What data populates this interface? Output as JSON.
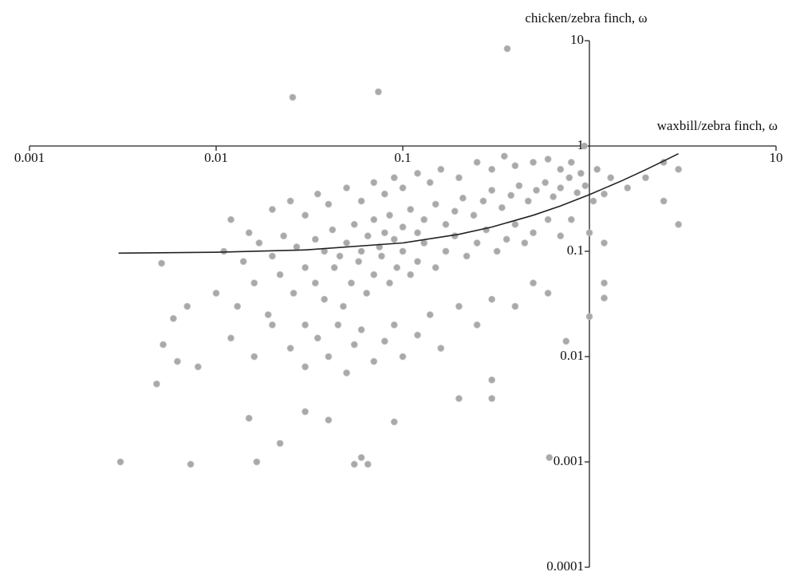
{
  "chart_data": {
    "type": "scatter",
    "x_label": "waxbill/zebra finch, ω",
    "y_label": "chicken/zebra finch, ω",
    "xscale": "log",
    "yscale": "log",
    "xlim": [
      0.001,
      10
    ],
    "ylim": [
      0.0001,
      10
    ],
    "xticks": [
      0.001,
      0.01,
      0.1,
      10
    ],
    "yticks": [
      0.0001,
      0.001,
      0.01,
      0.1,
      1,
      10
    ],
    "axes_cross": [
      1,
      1
    ],
    "points": {
      "color": "#a9a9a9",
      "x": [
        0.00307,
        0.0073,
        0.0165,
        0.055,
        0.06,
        0.065,
        0.61,
        0.0257,
        0.074,
        0.363,
        0.94,
        0.0051,
        0.0048,
        0.0052,
        0.0059,
        0.0062,
        0.007,
        0.008,
        0.015,
        0.022,
        0.03,
        0.04,
        0.09,
        0.2,
        0.3,
        0.3,
        3.0,
        2.5,
        1.2,
        1.2,
        1.0,
        0.75,
        0.012,
        0.015,
        0.02,
        0.025,
        0.03,
        0.035,
        0.04,
        0.05,
        0.06,
        0.07,
        0.08,
        0.09,
        0.1,
        0.12,
        0.14,
        0.16,
        0.2,
        0.25,
        0.3,
        0.35,
        0.4,
        0.5,
        0.6,
        0.7,
        0.8,
        0.9,
        1.1,
        1.3,
        1.6,
        2.0,
        2.5,
        3.0,
        0.011,
        0.014,
        0.017,
        0.02,
        0.023,
        0.027,
        0.03,
        0.034,
        0.038,
        0.042,
        0.046,
        0.05,
        0.055,
        0.06,
        0.065,
        0.07,
        0.075,
        0.08,
        0.085,
        0.09,
        0.1,
        0.11,
        0.12,
        0.13,
        0.15,
        0.17,
        0.19,
        0.21,
        0.24,
        0.27,
        0.3,
        0.34,
        0.38,
        0.42,
        0.47,
        0.52,
        0.58,
        0.64,
        0.7,
        0.78,
        0.86,
        0.95,
        1.05,
        1.2,
        0.01,
        0.013,
        0.016,
        0.019,
        0.022,
        0.026,
        0.03,
        0.034,
        0.038,
        0.043,
        0.048,
        0.053,
        0.058,
        0.064,
        0.07,
        0.077,
        0.085,
        0.093,
        0.1,
        0.11,
        0.12,
        0.13,
        0.15,
        0.17,
        0.19,
        0.22,
        0.25,
        0.28,
        0.32,
        0.36,
        0.4,
        0.45,
        0.5,
        0.6,
        0.7,
        0.8,
        1.0,
        1.2,
        0.012,
        0.016,
        0.02,
        0.025,
        0.03,
        0.035,
        0.04,
        0.045,
        0.05,
        0.055,
        0.06,
        0.07,
        0.08,
        0.09,
        0.1,
        0.12,
        0.14,
        0.16,
        0.2,
        0.25,
        0.3,
        0.4,
        0.5,
        0.6
      ],
      "values": [
        0.001,
        0.00095,
        0.001,
        0.00095,
        0.0011,
        0.00095,
        0.0011,
        2.9,
        3.27,
        8.4,
        1.0,
        0.077,
        0.0055,
        0.013,
        0.023,
        0.009,
        0.03,
        0.008,
        0.0026,
        0.0015,
        0.003,
        0.0025,
        0.0024,
        0.004,
        0.004,
        0.006,
        0.18,
        0.3,
        0.05,
        0.036,
        0.024,
        0.014,
        0.2,
        0.15,
        0.25,
        0.3,
        0.22,
        0.35,
        0.28,
        0.4,
        0.3,
        0.45,
        0.35,
        0.5,
        0.4,
        0.55,
        0.45,
        0.6,
        0.5,
        0.7,
        0.6,
        0.8,
        0.65,
        0.7,
        0.75,
        0.6,
        0.7,
        0.55,
        0.6,
        0.5,
        0.4,
        0.5,
        0.7,
        0.6,
        0.1,
        0.08,
        0.12,
        0.09,
        0.14,
        0.11,
        0.07,
        0.13,
        0.1,
        0.16,
        0.09,
        0.12,
        0.18,
        0.1,
        0.14,
        0.2,
        0.11,
        0.15,
        0.22,
        0.13,
        0.17,
        0.25,
        0.15,
        0.2,
        0.28,
        0.18,
        0.24,
        0.32,
        0.22,
        0.3,
        0.38,
        0.26,
        0.34,
        0.42,
        0.3,
        0.38,
        0.45,
        0.33,
        0.4,
        0.5,
        0.36,
        0.42,
        0.3,
        0.35,
        0.04,
        0.03,
        0.05,
        0.025,
        0.06,
        0.04,
        0.02,
        0.05,
        0.035,
        0.07,
        0.03,
        0.05,
        0.08,
        0.04,
        0.06,
        0.09,
        0.05,
        0.07,
        0.1,
        0.06,
        0.08,
        0.12,
        0.07,
        0.1,
        0.14,
        0.09,
        0.12,
        0.16,
        0.1,
        0.13,
        0.18,
        0.12,
        0.15,
        0.2,
        0.14,
        0.2,
        0.15,
        0.12,
        0.015,
        0.01,
        0.02,
        0.012,
        0.008,
        0.015,
        0.01,
        0.02,
        0.007,
        0.013,
        0.018,
        0.009,
        0.014,
        0.02,
        0.01,
        0.016,
        0.025,
        0.012,
        0.03,
        0.02,
        0.035,
        0.03,
        0.05,
        0.04
      ]
    },
    "fit": {
      "color": "#222222",
      "x": [
        0.003,
        0.01,
        0.03,
        0.1,
        0.2,
        0.3,
        0.5,
        0.7,
        1,
        1.5,
        2,
        2.5,
        3
      ],
      "values": [
        0.096,
        0.098,
        0.103,
        0.12,
        0.145,
        0.17,
        0.22,
        0.27,
        0.345,
        0.47,
        0.595,
        0.72,
        0.845
      ]
    }
  }
}
